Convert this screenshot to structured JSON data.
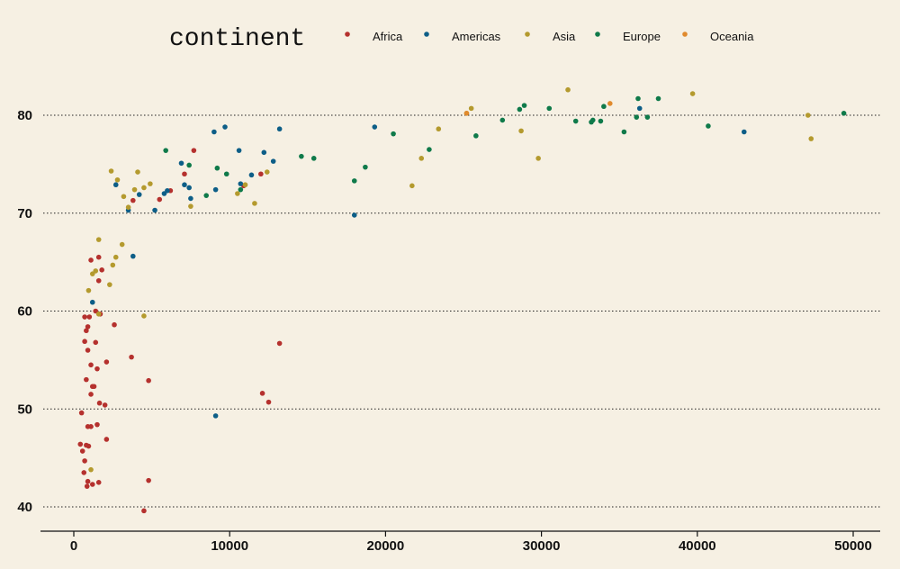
{
  "chart_data": {
    "type": "scatter",
    "title": "",
    "xlabel": "",
    "ylabel": "",
    "xlim": [
      0,
      50000
    ],
    "ylim": [
      40,
      80
    ],
    "x_ticks": [
      "0",
      "10000",
      "20000",
      "30000",
      "40000",
      "50000"
    ],
    "y_ticks": [
      "40",
      "50",
      "60",
      "70",
      "80"
    ],
    "grid": "horizontal dotted",
    "legend_placement": "top",
    "legend_title": "continent",
    "series": [
      {
        "name": "Africa",
        "color": "#b5312e",
        "points": [
          [
            420,
            46.4
          ],
          [
            560,
            45.7
          ],
          [
            800,
            46.3
          ],
          [
            950,
            46.2
          ],
          [
            650,
            43.5
          ],
          [
            700,
            44.7
          ],
          [
            850,
            42.1
          ],
          [
            900,
            42.6
          ],
          [
            1200,
            42.3
          ],
          [
            1600,
            42.5
          ],
          [
            4500,
            39.6
          ],
          [
            4800,
            42.7
          ],
          [
            2100,
            46.9
          ],
          [
            500,
            49.6
          ],
          [
            900,
            48.2
          ],
          [
            1100,
            48.2
          ],
          [
            1500,
            48.4
          ],
          [
            1650,
            50.6
          ],
          [
            2000,
            50.4
          ],
          [
            1100,
            51.5
          ],
          [
            800,
            53.0
          ],
          [
            1200,
            52.3
          ],
          [
            1300,
            52.3
          ],
          [
            1500,
            54.1
          ],
          [
            1100,
            54.5
          ],
          [
            900,
            56.0
          ],
          [
            700,
            56.9
          ],
          [
            1400,
            56.8
          ],
          [
            2100,
            54.8
          ],
          [
            3700,
            55.3
          ],
          [
            4800,
            52.9
          ],
          [
            12100,
            51.6
          ],
          [
            12500,
            50.7
          ],
          [
            13200,
            56.7
          ],
          [
            800,
            58.0
          ],
          [
            900,
            58.4
          ],
          [
            700,
            59.4
          ],
          [
            1000,
            59.4
          ],
          [
            1400,
            60.0
          ],
          [
            1700,
            59.7
          ],
          [
            2600,
            58.6
          ],
          [
            1600,
            63.1
          ],
          [
            1800,
            64.2
          ],
          [
            1100,
            65.2
          ],
          [
            1600,
            65.5
          ],
          [
            3800,
            71.3
          ],
          [
            5500,
            71.4
          ],
          [
            6200,
            72.3
          ],
          [
            7100,
            74.0
          ],
          [
            7700,
            76.4
          ],
          [
            10900,
            72.8
          ],
          [
            12000,
            74.0
          ]
        ]
      },
      {
        "name": "Americas",
        "color": "#0d5e87",
        "points": [
          [
            1200,
            60.9
          ],
          [
            3800,
            65.6
          ],
          [
            2700,
            72.9
          ],
          [
            3500,
            70.3
          ],
          [
            4200,
            71.9
          ],
          [
            5200,
            70.3
          ],
          [
            5800,
            72.0
          ],
          [
            6000,
            72.3
          ],
          [
            6900,
            75.1
          ],
          [
            7100,
            72.9
          ],
          [
            7400,
            72.6
          ],
          [
            7500,
            71.5
          ],
          [
            9100,
            72.4
          ],
          [
            9000,
            78.3
          ],
          [
            9700,
            78.8
          ],
          [
            9100,
            49.3
          ],
          [
            10600,
            76.4
          ],
          [
            10700,
            73.0
          ],
          [
            11400,
            73.9
          ],
          [
            12200,
            76.2
          ],
          [
            12800,
            75.3
          ],
          [
            13200,
            78.6
          ],
          [
            18000,
            69.8
          ],
          [
            19300,
            78.8
          ],
          [
            36300,
            80.7
          ],
          [
            43000,
            78.3
          ]
        ]
      },
      {
        "name": "Asia",
        "color": "#b49a2e",
        "points": [
          [
            1100,
            43.8
          ],
          [
            950,
            62.1
          ],
          [
            1200,
            63.8
          ],
          [
            1400,
            64.1
          ],
          [
            1600,
            67.3
          ],
          [
            1600,
            59.7
          ],
          [
            2300,
            62.7
          ],
          [
            2500,
            64.7
          ],
          [
            2700,
            65.5
          ],
          [
            3100,
            66.8
          ],
          [
            2400,
            74.3
          ],
          [
            2800,
            73.4
          ],
          [
            3200,
            71.7
          ],
          [
            3500,
            70.6
          ],
          [
            3900,
            72.4
          ],
          [
            4100,
            74.2
          ],
          [
            4500,
            72.6
          ],
          [
            4900,
            73.0
          ],
          [
            4500,
            59.5
          ],
          [
            7500,
            70.7
          ],
          [
            10500,
            72.0
          ],
          [
            11000,
            72.9
          ],
          [
            11600,
            71.0
          ],
          [
            12400,
            74.2
          ],
          [
            21700,
            72.8
          ],
          [
            22300,
            75.6
          ],
          [
            23400,
            78.6
          ],
          [
            25200,
            80.2
          ],
          [
            25500,
            80.7
          ],
          [
            28700,
            78.4
          ],
          [
            29800,
            75.6
          ],
          [
            31700,
            82.6
          ],
          [
            39700,
            82.2
          ],
          [
            47100,
            80.0
          ],
          [
            47300,
            77.6
          ]
        ]
      },
      {
        "name": "Europe",
        "color": "#0f7a4a",
        "points": [
          [
            5900,
            76.4
          ],
          [
            7400,
            74.9
          ],
          [
            8500,
            71.8
          ],
          [
            9200,
            74.6
          ],
          [
            9800,
            74.0
          ],
          [
            10700,
            72.4
          ],
          [
            14600,
            75.8
          ],
          [
            15400,
            75.6
          ],
          [
            18000,
            73.3
          ],
          [
            18700,
            74.7
          ],
          [
            20500,
            78.1
          ],
          [
            22800,
            76.5
          ],
          [
            25800,
            77.9
          ],
          [
            27500,
            79.5
          ],
          [
            28600,
            80.6
          ],
          [
            28900,
            81.0
          ],
          [
            30500,
            80.7
          ],
          [
            32200,
            79.4
          ],
          [
            33200,
            79.3
          ],
          [
            33300,
            79.5
          ],
          [
            33800,
            79.4
          ],
          [
            34000,
            80.9
          ],
          [
            35300,
            78.3
          ],
          [
            36100,
            79.8
          ],
          [
            36200,
            81.7
          ],
          [
            36800,
            79.8
          ],
          [
            37500,
            81.7
          ],
          [
            40700,
            78.9
          ],
          [
            49400,
            80.2
          ]
        ]
      },
      {
        "name": "Oceania",
        "color": "#e08a2d",
        "points": [
          [
            25200,
            80.2
          ],
          [
            34400,
            81.2
          ]
        ]
      }
    ]
  }
}
